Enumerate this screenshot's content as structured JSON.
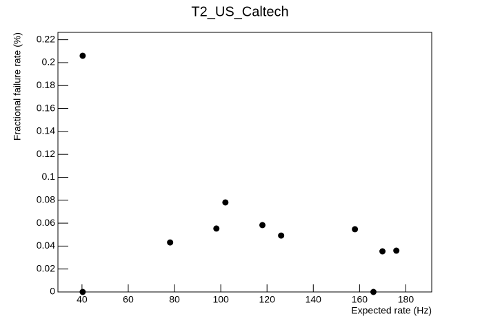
{
  "chart_data": {
    "type": "scatter",
    "title": "T2_US_Caltech",
    "x_label": "Expected rate (Hz)",
    "y_label": "Fractional failure rate (%)",
    "x": [
      40.3,
      40.3,
      78.1,
      98.1,
      102,
      118,
      126.1,
      158,
      166,
      169.9,
      175.9
    ],
    "values": [
      0.206,
      0,
      0.0432,
      0.0553,
      0.0781,
      0.0583,
      0.0492,
      0.0547,
      0,
      0.0354,
      0.036
    ],
    "color": "#000000",
    "xlim": [
      29.6,
      191.2
    ],
    "xticks": [
      40,
      60,
      80,
      100,
      120,
      140,
      160,
      180
    ],
    "ylim": [
      0,
      0.2264
    ],
    "yticks": [
      0,
      0.02,
      0.04,
      0.06,
      0.08,
      0.1,
      0.12,
      0.14,
      0.16,
      0.18,
      0.2,
      0.22
    ],
    "grid": false
  }
}
